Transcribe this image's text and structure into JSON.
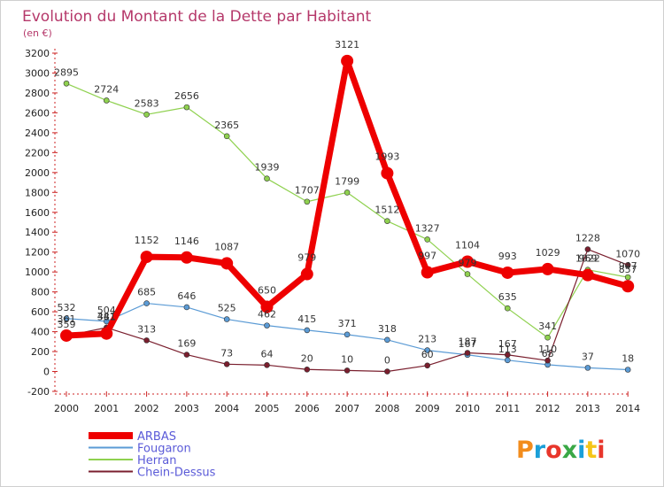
{
  "title": "Evolution du Montant de la Dette par Habitant",
  "unit": "(en €)",
  "logo": {
    "text": "Proxiti",
    "colors": [
      "#f28c1c",
      "#1b9fd8",
      "#e8362b",
      "#3aa846",
      "#1b9fd8",
      "#f5c518",
      "#e8362b"
    ]
  },
  "chart_data": {
    "type": "line",
    "x": [
      "2000",
      "2001",
      "2002",
      "2003",
      "2004",
      "2005",
      "2006",
      "2007",
      "2008",
      "2009",
      "2010",
      "2011",
      "2012",
      "2013",
      "2014"
    ],
    "ylim": [
      -200,
      3200
    ],
    "yticks": [
      -200,
      0,
      200,
      400,
      600,
      800,
      1000,
      1200,
      1400,
      1600,
      1800,
      2000,
      2200,
      2400,
      2600,
      2800,
      3000,
      3200
    ],
    "grid": false,
    "legend_position": "bottom-left",
    "series": [
      {
        "name": "ARBAS",
        "color": "#ee0000",
        "width": 7,
        "marker": 7,
        "values": [
          361,
          381,
          1152,
          1146,
          1087,
          650,
          979,
          3121,
          1993,
          997,
          1104,
          993,
          1029,
          969,
          857
        ],
        "labels": [
          "361",
          "381",
          "1152",
          "1146",
          "1087",
          "650",
          "979",
          "3121",
          "1993",
          "997",
          "1104",
          "993",
          "1029",
          "969",
          "857"
        ]
      },
      {
        "name": "Fougaron",
        "color": "#5b9bd5",
        "width": 1.2,
        "marker": 3,
        "values": [
          532,
          504,
          685,
          646,
          525,
          462,
          415,
          371,
          318,
          213,
          167,
          113,
          68,
          37,
          18
        ],
        "labels": [
          "532",
          "504",
          "685",
          "646",
          "525",
          "462",
          "415",
          "371",
          "318",
          "213",
          "167",
          "113",
          "68",
          "37",
          "18"
        ]
      },
      {
        "name": "Herran",
        "color": "#8fd14f",
        "width": 1.2,
        "marker": 3,
        "values": [
          2895,
          2724,
          2583,
          2656,
          2365,
          1939,
          1707,
          1799,
          1512,
          1327,
          979,
          635,
          341,
          1022,
          947
        ],
        "labels": [
          "2895",
          "2724",
          "2583",
          "2656",
          "2365",
          "1939",
          "1707",
          "1799",
          "1512",
          "1327",
          "979",
          "635",
          "341",
          "1022",
          "947"
        ]
      },
      {
        "name": "Chein-Dessus",
        "color": "#7a1f2e",
        "width": 1.2,
        "marker": 3,
        "values": [
          359,
          441,
          313,
          169,
          73,
          64,
          20,
          10,
          0,
          60,
          187,
          167,
          110,
          1228,
          1070
        ],
        "labels": [
          "359",
          "441",
          "313",
          "169",
          "73",
          "64",
          "20",
          "10",
          "0",
          "60",
          "187",
          "167",
          "110",
          "1228",
          "1070"
        ]
      }
    ]
  }
}
